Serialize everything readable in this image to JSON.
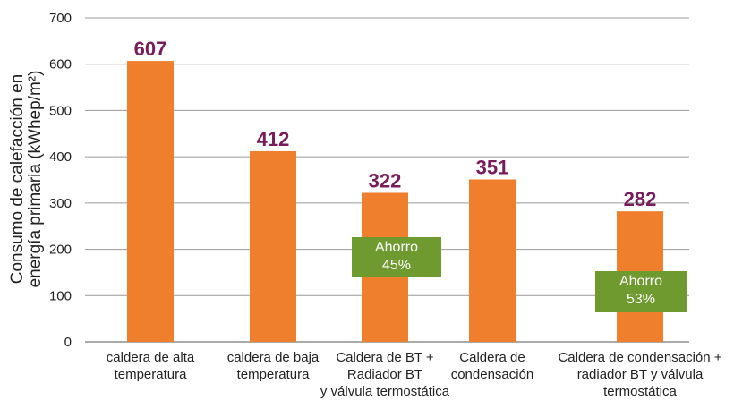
{
  "chart_data": {
    "type": "bar",
    "y_label": "Consumo de calefacción en\nenergía primaria (kWhep/m²)",
    "categories": [
      "caldera de alta\ntemperatura",
      "caldera de baja\ntemperatura",
      "Caldera de BT +\nRadiador BT\ny válvula termostática",
      "Caldera de\ncondensación",
      "Caldera de condensación +\nradiador BT y válvula\ntermostática"
    ],
    "values": [
      607,
      412,
      322,
      351,
      282
    ],
    "color": "#f07f2d",
    "value_label_color": "#7a1c5c",
    "annotations": [
      "Ahorro\n45%",
      "Ahorro\n53%"
    ],
    "annotation_color": "#6f9a2f",
    "ylim": [
      0,
      700
    ],
    "yticks": [
      0,
      100,
      200,
      300,
      400,
      500,
      600,
      700
    ],
    "grid": true
  }
}
